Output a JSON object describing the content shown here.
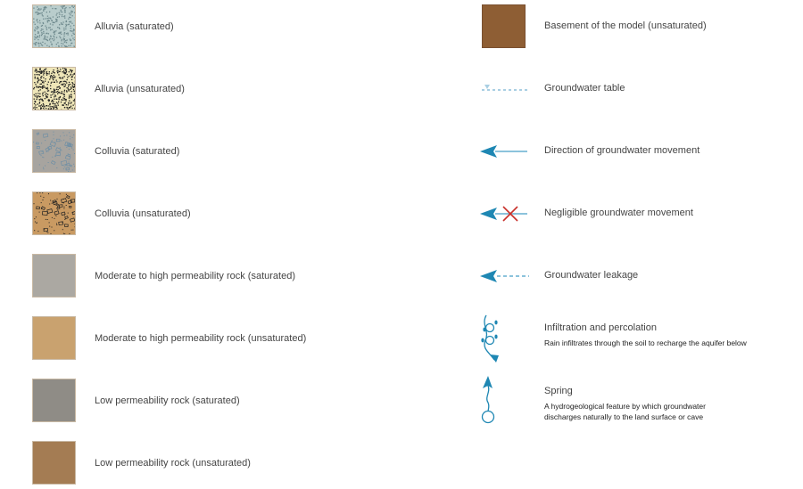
{
  "left_items": [
    {
      "label": "Alluvia (saturated)",
      "color": "#b9cdcc",
      "pattern": "dots-dark-fine"
    },
    {
      "label": "Alluvia (unsaturated)",
      "color": "#efe6b8",
      "pattern": "dots-black-dense"
    },
    {
      "label": "Colluvia (saturated)",
      "color": "#a7a49f",
      "pattern": "clasts-blue"
    },
    {
      "label": "Colluvia (unsaturated)",
      "color": "#c99a62",
      "pattern": "clasts-black"
    },
    {
      "label": "Moderate to high permeability rock (saturated)",
      "color": "#aba8a2",
      "pattern": "none"
    },
    {
      "label": "Moderate to high permeability rock (unsaturated)",
      "color": "#c9a26f",
      "pattern": "none"
    },
    {
      "label": "Low permeability rock (saturated)",
      "color": "#8f8c86",
      "pattern": "none"
    },
    {
      "label": "Low permeability rock (unsaturated)",
      "color": "#a47c53",
      "pattern": "none"
    }
  ],
  "right_items": [
    {
      "label": "Basement of the model (unsaturated)",
      "icon": "brown-swatch",
      "color": "#8e5e34"
    },
    {
      "label": "Groundwater table",
      "icon": "dotted-water-table-line"
    },
    {
      "label": "Direction of groundwater movement",
      "icon": "arrow-left-solid"
    },
    {
      "label": "Negligible groundwater movement",
      "icon": "arrow-left-crossed"
    },
    {
      "label": "Groundwater leakage",
      "icon": "arrow-left-dashed"
    },
    {
      "label": "Infiltration and percolation",
      "description": "Rain infiltrates through the soil to recharge the aquifer below",
      "icon": "infiltration-drops"
    },
    {
      "label": "Spring",
      "description": "A hydrogeological feature by which groundwater discharges naturally to the land surface or cave",
      "icon": "spring-circle-arrow"
    }
  ],
  "colors": {
    "arrow": "#1e87b3",
    "line": "#8cc3dc",
    "cross": "#c8302a"
  }
}
